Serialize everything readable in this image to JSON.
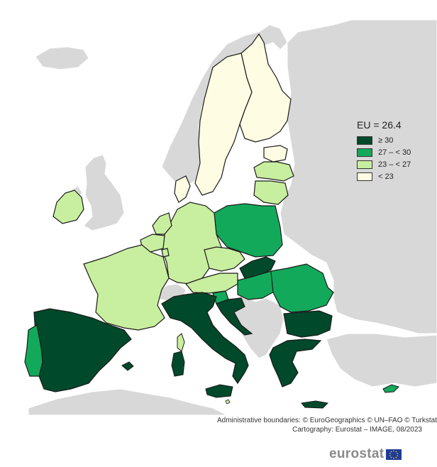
{
  "legend": {
    "title": "EU = 26.4",
    "classes": [
      {
        "label": "≥ 30",
        "color": "#00492b"
      },
      {
        "label": "27 – < 30",
        "color": "#12a95b"
      },
      {
        "label": "23 – < 27",
        "color": "#c8ee9f"
      },
      {
        "label": "< 23",
        "color": "#fefde4"
      }
    ]
  },
  "colors": {
    "sea": "#ffffff",
    "non_eu_land": "#d8d8d8",
    "border": "#1a1a1a"
  },
  "credits": {
    "line1": "Administrative boundaries: © EuroGeographics © UN–FAO © Turkstat",
    "line2": "Cartography: Eurostat – IMAGE, 08/2023"
  },
  "logo": {
    "text": "eurostat",
    "flag_icon": "eu-flag-icon"
  }
}
